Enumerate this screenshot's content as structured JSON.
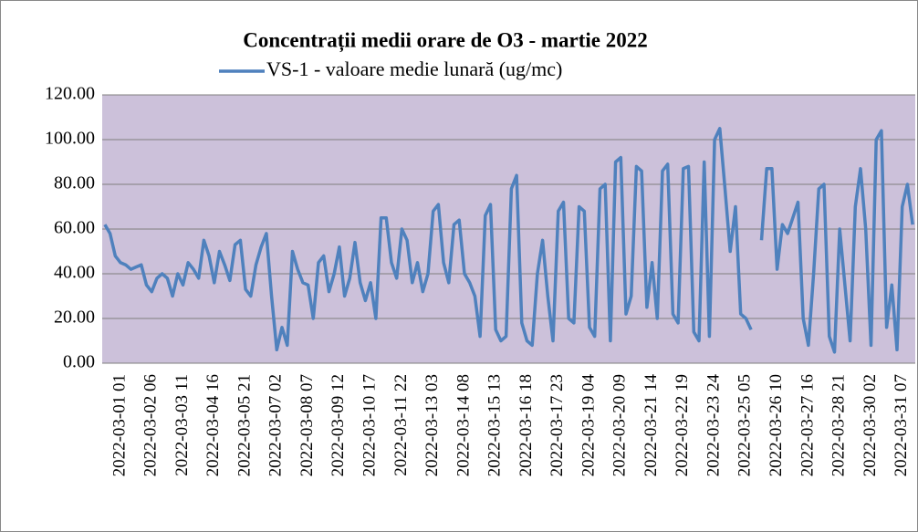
{
  "chart_data": {
    "type": "line",
    "title": "Concentrații medii orare de O3 - martie 2022",
    "categories": [
      null,
      null,
      null,
      "2022-03-01 01",
      null,
      null,
      null,
      null,
      null,
      "2022-03-02 06",
      null,
      null,
      null,
      null,
      null,
      "2022-03-03 11",
      null,
      null,
      null,
      null,
      null,
      "2022-03-04 16",
      null,
      null,
      null,
      null,
      null,
      "2022-03-05 21",
      null,
      null,
      null,
      null,
      null,
      "2022-03-07 02",
      null,
      null,
      null,
      null,
      null,
      "2022-03-08 07",
      null,
      null,
      null,
      null,
      null,
      "2022-03-09 12",
      null,
      null,
      null,
      null,
      null,
      "2022-03-10 17",
      null,
      null,
      null,
      null,
      null,
      "2022-03-11 22",
      null,
      null,
      null,
      null,
      null,
      "2022-03-13 03",
      null,
      null,
      null,
      null,
      null,
      "2022-03-14 08",
      null,
      null,
      null,
      null,
      null,
      "2022-03-15 13",
      null,
      null,
      null,
      null,
      null,
      "2022-03-16 18",
      null,
      null,
      null,
      null,
      null,
      "2022-03-17 23",
      null,
      null,
      null,
      null,
      null,
      "2022-03-19 04",
      null,
      null,
      null,
      null,
      null,
      "2022-03-20 09",
      null,
      null,
      null,
      null,
      null,
      "2022-03-21 14",
      null,
      null,
      null,
      null,
      null,
      "2022-03-22 19",
      null,
      null,
      null,
      null,
      null,
      "2022-03-23 24",
      null,
      null,
      null,
      null,
      null,
      "2022-03-25 05",
      null,
      null,
      null,
      null,
      null,
      "2022-03-26 10",
      null,
      null,
      null,
      null,
      null,
      "2022-03-27 16",
      null,
      null,
      null,
      null,
      null,
      "2022-03-28 21",
      null,
      null,
      null,
      null,
      null,
      "2022-03-30 02",
      null,
      null,
      null,
      null,
      null,
      "2022-03-31 07",
      null,
      null
    ],
    "series": [
      {
        "name": "VS-1 - valoare medie lunară (ug/mc)",
        "color": "#4f81bd",
        "values": [
          62,
          58,
          48,
          45,
          44,
          42,
          43,
          44,
          35,
          32,
          38,
          40,
          38,
          30,
          40,
          35,
          45,
          42,
          38,
          55,
          48,
          36,
          50,
          44,
          37,
          53,
          55,
          33,
          30,
          44,
          52,
          58,
          30,
          6,
          16,
          8,
          50,
          42,
          36,
          35,
          20,
          45,
          48,
          32,
          40,
          52,
          30,
          38,
          54,
          36,
          28,
          36,
          20,
          65,
          65,
          45,
          38,
          60,
          55,
          36,
          45,
          32,
          40,
          68,
          71,
          45,
          36,
          62,
          64,
          40,
          36,
          30,
          12,
          66,
          71,
          15,
          10,
          12,
          78,
          84,
          18,
          10,
          8,
          40,
          55,
          30,
          10,
          68,
          72,
          20,
          18,
          70,
          68,
          16,
          12,
          78,
          80,
          10,
          90,
          92,
          22,
          30,
          88,
          86,
          25,
          45,
          20,
          86,
          89,
          22,
          18,
          87,
          88,
          14,
          10,
          90,
          12,
          100,
          105,
          78,
          50,
          70,
          22,
          20,
          15,
          null,
          55,
          87,
          87,
          42,
          62,
          58,
          65,
          72,
          20,
          8,
          40,
          78,
          80,
          12,
          5,
          60,
          35,
          10,
          70,
          87,
          60,
          8,
          100,
          104,
          16,
          35,
          6,
          70,
          80,
          62
        ]
      }
    ],
    "ylim": [
      0,
      120
    ],
    "yticks": [
      {
        "value": 0,
        "label": "0.00"
      },
      {
        "value": 20,
        "label": "20.00"
      },
      {
        "value": 40,
        "label": "40.00"
      },
      {
        "value": 60,
        "label": "60.00"
      },
      {
        "value": 80,
        "label": "80.00"
      },
      {
        "value": 100,
        "label": "100.00"
      },
      {
        "value": 120,
        "label": "120.00"
      }
    ],
    "grid": true,
    "plot_background": "#ccc1da"
  }
}
